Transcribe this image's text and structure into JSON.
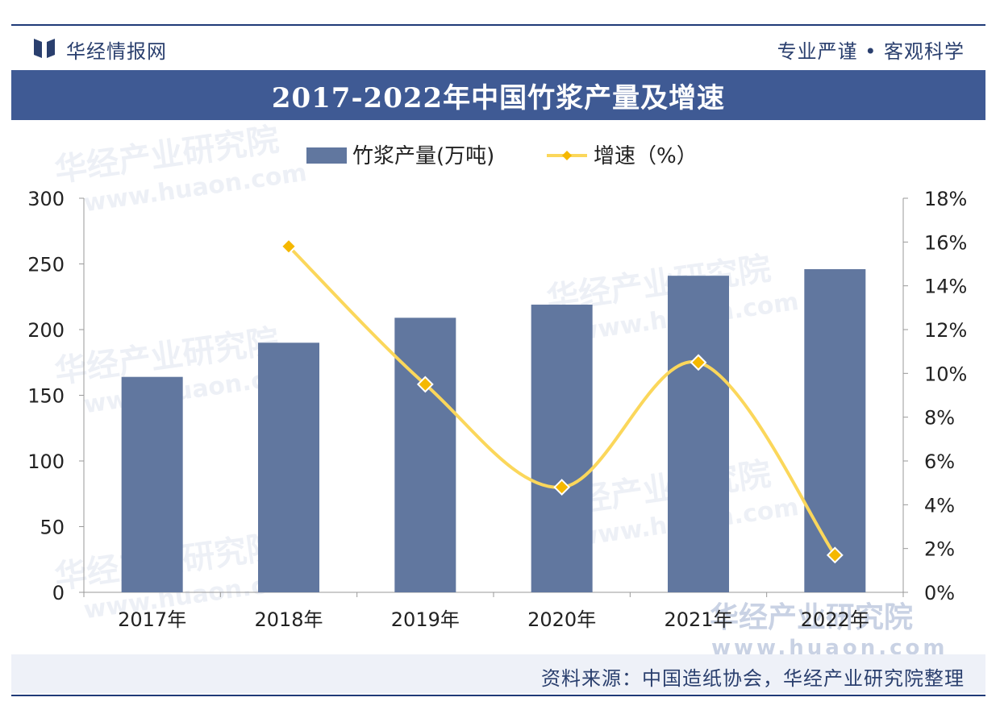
{
  "header": {
    "brand": "华经情报网",
    "slogan": "专业严谨 • 客观科学"
  },
  "watermark": {
    "name": "华经产业研究院",
    "url": "www.huaon.com"
  },
  "footer": {
    "source": "资料来源：中国造纸协会，华经产业研究院整理"
  },
  "colors": {
    "bar": "#61779f",
    "line": "#fbd75b",
    "marker": "#f5b800",
    "title_bg": "#3f5a94",
    "accent": "#1f3a78"
  },
  "chart_data": {
    "type": "bar",
    "title": "2017-2022年中国竹浆产量及增速",
    "categories": [
      "2017年",
      "2018年",
      "2019年",
      "2020年",
      "2021年",
      "2022年"
    ],
    "series": [
      {
        "name": "竹浆产量(万吨)",
        "type": "bar",
        "axis": "left",
        "values": [
          164,
          190,
          209,
          219,
          241,
          246
        ]
      },
      {
        "name": "增速（%）",
        "type": "line",
        "axis": "right",
        "values": [
          null,
          15.8,
          9.5,
          4.8,
          10.5,
          1.7
        ]
      }
    ],
    "y_left": {
      "min": 0,
      "max": 300,
      "ticks": [
        "0",
        "50",
        "100",
        "150",
        "200",
        "250",
        "300"
      ]
    },
    "y_right": {
      "min": 0,
      "max": 18,
      "ticks": [
        "0%",
        "2%",
        "4%",
        "6%",
        "8%",
        "10%",
        "12%",
        "14%",
        "16%",
        "18%"
      ]
    },
    "legend": "top-center",
    "grid": false
  }
}
